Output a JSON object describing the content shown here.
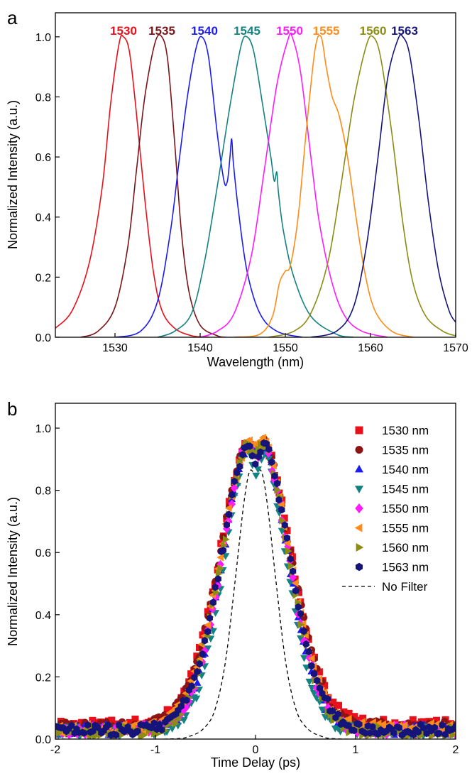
{
  "panels": [
    {
      "letter": "a",
      "xlabel": "Wavelength (nm)",
      "ylabel": "Normalized Intensity (a.u.)",
      "xlim": [
        1523,
        1570
      ],
      "ylim": [
        0,
        1.08
      ],
      "xticks": [
        "1530",
        "1540",
        "1550",
        "1560",
        "1570"
      ],
      "yticks": [
        "0.0",
        "0.2",
        "0.4",
        "0.6",
        "0.8",
        "1.0"
      ]
    },
    {
      "letter": "b",
      "xlabel": "Time Delay (ps)",
      "ylabel": "Normalized Intensity (a.u.)",
      "xlim": [
        -2,
        2
      ],
      "ylim": [
        0,
        1.08
      ],
      "xticks": [
        "-2",
        "-1",
        "0",
        "1",
        "2"
      ],
      "yticks": [
        "0.0",
        "0.2",
        "0.4",
        "0.6",
        "0.8",
        "1.0"
      ]
    }
  ],
  "chart_data": [
    {
      "type": "line",
      "xlabel": "Wavelength (nm)",
      "ylabel": "Normalized Intensity (a.u.)",
      "xlim": [
        1523,
        1570
      ],
      "ylim": [
        0,
        1.08
      ],
      "grid": false,
      "peak_labels": [
        {
          "text": "1530",
          "color": "#e8101a",
          "x": 1531
        },
        {
          "text": "1535",
          "color": "#7a1418",
          "x": 1535.5
        },
        {
          "text": "1540",
          "color": "#1c1cf0",
          "x": 1540.5
        },
        {
          "text": "1545",
          "color": "#148282",
          "x": 1545.5
        },
        {
          "text": "1550",
          "color": "#ff1aff",
          "x": 1550.5
        },
        {
          "text": "1555",
          "color": "#ff8c1a",
          "x": 1554.8
        },
        {
          "text": "1560",
          "color": "#8c8c14",
          "x": 1560.3
        },
        {
          "text": "1563",
          "color": "#14147a",
          "x": 1564
        }
      ],
      "series": [
        {
          "color": "#e8101a",
          "points": [
            [
              1523,
              0.03
            ],
            [
              1525,
              0.09
            ],
            [
              1527,
              0.25
            ],
            [
              1528.5,
              0.5
            ],
            [
              1529.5,
              0.78
            ],
            [
              1530.5,
              0.98
            ],
            [
              1531,
              1.0
            ],
            [
              1531.7,
              0.95
            ],
            [
              1532.5,
              0.75
            ],
            [
              1533.5,
              0.46
            ],
            [
              1534.5,
              0.22
            ],
            [
              1535.5,
              0.09
            ],
            [
              1537,
              0.03
            ],
            [
              1539,
              0.005
            ],
            [
              1541,
              0.0
            ]
          ]
        },
        {
          "color": "#7a1418",
          "points": [
            [
              1526,
              0.0
            ],
            [
              1528,
              0.02
            ],
            [
              1530,
              0.1
            ],
            [
              1531.5,
              0.3
            ],
            [
              1532.5,
              0.55
            ],
            [
              1533.5,
              0.8
            ],
            [
              1534.7,
              0.98
            ],
            [
              1535.5,
              1.0
            ],
            [
              1536.2,
              0.92
            ],
            [
              1537,
              0.65
            ],
            [
              1537.8,
              0.35
            ],
            [
              1538.7,
              0.15
            ],
            [
              1540,
              0.04
            ],
            [
              1542,
              0.005
            ],
            [
              1543,
              0.0
            ]
          ]
        },
        {
          "color": "#1c1cf0",
          "points": [
            [
              1530,
              0.0
            ],
            [
              1533,
              0.02
            ],
            [
              1535,
              0.12
            ],
            [
              1536.5,
              0.35
            ],
            [
              1537.5,
              0.58
            ],
            [
              1538.5,
              0.8
            ],
            [
              1539.5,
              0.96
            ],
            [
              1540.2,
              1.0
            ],
            [
              1541,
              0.93
            ],
            [
              1542,
              0.68
            ],
            [
              1542.8,
              0.52
            ],
            [
              1543.2,
              0.52
            ],
            [
              1543.5,
              0.6
            ],
            [
              1543.7,
              0.66
            ],
            [
              1543.9,
              0.58
            ],
            [
              1544.5,
              0.42
            ],
            [
              1545.5,
              0.22
            ],
            [
              1547,
              0.08
            ],
            [
              1549,
              0.02
            ],
            [
              1552,
              0.0
            ]
          ]
        },
        {
          "color": "#148282",
          "points": [
            [
              1535,
              0.0
            ],
            [
              1537,
              0.02
            ],
            [
              1539,
              0.08
            ],
            [
              1540.5,
              0.25
            ],
            [
              1542,
              0.5
            ],
            [
              1543.5,
              0.77
            ],
            [
              1544.8,
              0.97
            ],
            [
              1545.5,
              1.0
            ],
            [
              1546.3,
              0.95
            ],
            [
              1547.3,
              0.78
            ],
            [
              1548.3,
              0.6
            ],
            [
              1548.7,
              0.52
            ],
            [
              1549,
              0.55
            ],
            [
              1549.2,
              0.48
            ],
            [
              1549.8,
              0.35
            ],
            [
              1551,
              0.2
            ],
            [
              1553,
              0.07
            ],
            [
              1556,
              0.01
            ],
            [
              1558,
              0.0
            ]
          ]
        },
        {
          "color": "#ff1aff",
          "points": [
            [
              1540,
              0.0
            ],
            [
              1542,
              0.02
            ],
            [
              1544,
              0.08
            ],
            [
              1546,
              0.27
            ],
            [
              1547.5,
              0.55
            ],
            [
              1549,
              0.84
            ],
            [
              1550.3,
              0.99
            ],
            [
              1550.8,
              1.0
            ],
            [
              1551.8,
              0.88
            ],
            [
              1553,
              0.6
            ],
            [
              1554,
              0.38
            ],
            [
              1555.5,
              0.18
            ],
            [
              1557,
              0.07
            ],
            [
              1559,
              0.02
            ],
            [
              1562,
              0.0
            ]
          ]
        },
        {
          "color": "#ff8c1a",
          "points": [
            [
              1544,
              0.0
            ],
            [
              1547,
              0.01
            ],
            [
              1548.5,
              0.07
            ],
            [
              1549.3,
              0.18
            ],
            [
              1550,
              0.22
            ],
            [
              1550.6,
              0.24
            ],
            [
              1551.5,
              0.4
            ],
            [
              1552.5,
              0.7
            ],
            [
              1553.5,
              0.96
            ],
            [
              1554.2,
              1.0
            ],
            [
              1554.8,
              0.9
            ],
            [
              1555.5,
              0.8
            ],
            [
              1556.3,
              0.74
            ],
            [
              1557.3,
              0.6
            ],
            [
              1558.3,
              0.4
            ],
            [
              1559.3,
              0.22
            ],
            [
              1560.5,
              0.09
            ],
            [
              1562.5,
              0.02
            ],
            [
              1565,
              0.0
            ]
          ]
        },
        {
          "color": "#8c8c14",
          "points": [
            [
              1548,
              0.0
            ],
            [
              1551,
              0.02
            ],
            [
              1553,
              0.08
            ],
            [
              1555,
              0.25
            ],
            [
              1556.5,
              0.5
            ],
            [
              1558,
              0.78
            ],
            [
              1559.5,
              0.97
            ],
            [
              1560.3,
              1.0
            ],
            [
              1561.2,
              0.93
            ],
            [
              1562.5,
              0.68
            ],
            [
              1563.8,
              0.38
            ],
            [
              1565,
              0.18
            ],
            [
              1566.5,
              0.07
            ],
            [
              1568.5,
              0.02
            ],
            [
              1570,
              0.005
            ]
          ]
        },
        {
          "color": "#14147a",
          "points": [
            [
              1553,
              0.0
            ],
            [
              1556,
              0.02
            ],
            [
              1558,
              0.1
            ],
            [
              1559.5,
              0.3
            ],
            [
              1560.8,
              0.58
            ],
            [
              1562,
              0.86
            ],
            [
              1563.2,
              0.99
            ],
            [
              1563.8,
              1.0
            ],
            [
              1564.6,
              0.94
            ],
            [
              1565.7,
              0.72
            ],
            [
              1566.8,
              0.45
            ],
            [
              1568,
              0.22
            ],
            [
              1569.2,
              0.09
            ],
            [
              1570,
              0.05
            ]
          ]
        }
      ]
    },
    {
      "type": "scatter",
      "xlabel": "Time Delay (ps)",
      "ylabel": "Normalized Intensity (a.u.)",
      "xlim": [
        -2,
        2
      ],
      "ylim": [
        0,
        1.08
      ],
      "grid": false,
      "legend_position": "top-right",
      "series": [
        {
          "name": "1530 nm",
          "color": "#e8101a",
          "marker": "square",
          "sigma": 0.34,
          "dip": 0.08,
          "baseline": 0.045,
          "seed": 11
        },
        {
          "name": "1535 nm",
          "color": "#8c1414",
          "marker": "circle",
          "sigma": 0.335,
          "dip": 0.07,
          "baseline": 0.04,
          "seed": 23
        },
        {
          "name": "1540 nm",
          "color": "#1c1cf0",
          "marker": "triangle-up",
          "sigma": 0.31,
          "dip": 0.09,
          "baseline": 0.03,
          "seed": 37
        },
        {
          "name": "1545 nm",
          "color": "#148282",
          "marker": "triangle-down",
          "sigma": 0.29,
          "dip": 0.14,
          "baseline": 0.025,
          "seed": 41
        },
        {
          "name": "1550 nm",
          "color": "#ff1aff",
          "marker": "diamond",
          "sigma": 0.315,
          "dip": 0.09,
          "baseline": 0.03,
          "seed": 53
        },
        {
          "name": "1555 nm",
          "color": "#ff8c1a",
          "marker": "triangle-left",
          "sigma": 0.33,
          "dip": 0.07,
          "baseline": 0.035,
          "seed": 67
        },
        {
          "name": "1560 nm",
          "color": "#8c8c14",
          "marker": "triangle-right",
          "sigma": 0.32,
          "dip": 0.08,
          "baseline": 0.025,
          "seed": 71
        },
        {
          "name": "1563 nm",
          "color": "#14147a",
          "marker": "hexagon",
          "sigma": 0.325,
          "dip": 0.1,
          "baseline": 0.03,
          "seed": 83
        }
      ],
      "reference_line": {
        "name": "No Filter",
        "color": "#000000",
        "style": "dashed",
        "points": [
          [
            -2,
            0.0
          ],
          [
            -0.9,
            0.0
          ],
          [
            -0.65,
            0.01
          ],
          [
            -0.5,
            0.04
          ],
          [
            -0.4,
            0.1
          ],
          [
            -0.3,
            0.25
          ],
          [
            -0.2,
            0.52
          ],
          [
            -0.12,
            0.75
          ],
          [
            -0.06,
            0.86
          ],
          [
            0,
            0.85
          ],
          [
            0.06,
            0.86
          ],
          [
            0.12,
            0.75
          ],
          [
            0.2,
            0.52
          ],
          [
            0.3,
            0.25
          ],
          [
            0.4,
            0.1
          ],
          [
            0.5,
            0.04
          ],
          [
            0.65,
            0.01
          ],
          [
            0.9,
            0.0
          ],
          [
            2,
            0.0
          ]
        ]
      }
    }
  ]
}
